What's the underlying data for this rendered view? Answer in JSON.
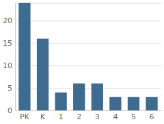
{
  "chart_data": {
    "type": "bar",
    "categories": [
      "PK",
      "K",
      "1",
      "2",
      "3",
      "4",
      "5",
      "6"
    ],
    "values": [
      24,
      16,
      4,
      6,
      6,
      3,
      3,
      3
    ],
    "color": "#3f6b8f",
    "ylim": [
      0,
      24
    ],
    "yticks": [
      0,
      5,
      10,
      15,
      20
    ],
    "grid": true
  }
}
